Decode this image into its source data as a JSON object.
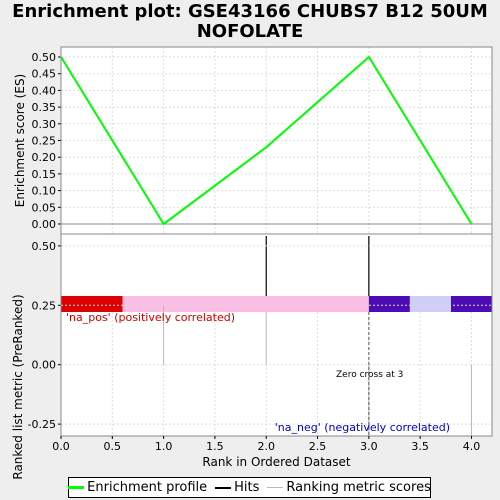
{
  "chart_data": {
    "title": "Enrichment plot: GSE43166 CHUBS7 B12 50UM NOFOLATE",
    "xlabel": "Rank in Ordered Dataset",
    "x_ticks": [
      "0.0",
      "0.5",
      "1.0",
      "1.5",
      "2.0",
      "2.5",
      "3.0",
      "3.5",
      "4.0"
    ],
    "xlim": [
      0,
      4.2
    ],
    "top_panel": {
      "type": "line",
      "ylabel": "Enrichment score (ES)",
      "ylim": [
        -0.03,
        0.53
      ],
      "y_ticks": [
        "0.00",
        "0.05",
        "0.10",
        "0.15",
        "0.20",
        "0.25",
        "0.30",
        "0.35",
        "0.40",
        "0.45",
        "0.50"
      ],
      "grid": true,
      "series": [
        {
          "name": "Enrichment profile",
          "color": "#00ff00",
          "x": [
            0,
            1,
            2,
            3,
            4
          ],
          "y": [
            0.5,
            0.0,
            0.23,
            0.5,
            0.0
          ]
        }
      ]
    },
    "hits": {
      "name": "Hits",
      "x": [
        2,
        3
      ],
      "color": "#000000"
    },
    "color_bar": [
      {
        "from": 0,
        "to": 0.6,
        "color": "#dd0000"
      },
      {
        "from": 0.6,
        "to": 3.0,
        "color": "#fbbde4"
      },
      {
        "from": 3.0,
        "to": 3.4,
        "color": "#4b0cb4"
      },
      {
        "from": 3.4,
        "to": 3.8,
        "color": "#d0cdf8"
      },
      {
        "from": 3.8,
        "to": 4.2,
        "color": "#4b0cb4"
      }
    ],
    "bottom_panel": {
      "type": "bar",
      "ylabel": "Ranked list metric (PreRanked)",
      "ylim": [
        -0.3,
        0.55
      ],
      "y_ticks": [
        "-0.25",
        "0.00",
        "0.25",
        "0.50"
      ],
      "series": [
        {
          "name": "Ranking metric scores",
          "color": "#bbbbbb",
          "x": [
            1,
            2,
            3,
            4
          ],
          "y": [
            0.25,
            0.22,
            -0.3,
            -0.3
          ]
        }
      ],
      "zero_cross_x": 3,
      "annotations": {
        "pos": "'na_pos' (positively correlated)",
        "neg": "'na_neg' (negatively correlated)",
        "zero": "Zero cross at 3"
      },
      "annotation_colors": {
        "pos": "#cc0000",
        "neg": "#0000cc"
      }
    },
    "legend": {
      "items": [
        {
          "label": "Enrichment profile",
          "color": "#00ff00"
        },
        {
          "label": "Hits",
          "color": "#000000"
        },
        {
          "label": "Ranking metric scores",
          "color": "#bbbbbb"
        }
      ]
    }
  }
}
